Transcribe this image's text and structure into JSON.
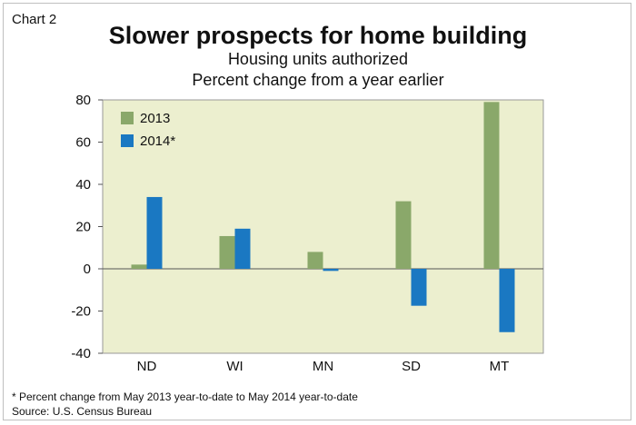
{
  "header": {
    "chart_tag": "Chart 2",
    "title": "Slower prospects for home building",
    "subtitle_line1": "Housing units authorized",
    "subtitle_line2": "Percent change from a year earlier"
  },
  "footer": {
    "note": "* Percent change from May 2013 year-to-date to May 2014 year-to-date",
    "source": "Source: U.S. Census Bureau"
  },
  "colors": {
    "plot_background": "#ecefcf",
    "series_2013": "#8aa86a",
    "series_2014": "#1a78c2"
  },
  "chart_data": {
    "type": "bar",
    "title": "Slower prospects for home building",
    "subtitle": "Housing units authorized / Percent change from a year earlier",
    "categories": [
      "ND",
      "WI",
      "MN",
      "SD",
      "MT"
    ],
    "series": [
      {
        "name": "2013",
        "values": [
          2,
          15.5,
          8,
          32,
          79
        ]
      },
      {
        "name": "2014*",
        "values": [
          34,
          19,
          -1,
          -17.5,
          -30
        ]
      }
    ],
    "ylim": [
      -40,
      80
    ],
    "yticks": [
      80,
      60,
      40,
      20,
      0,
      -20,
      -40
    ],
    "ytick_labels": [
      "80",
      "60",
      "40",
      "20",
      "0",
      "-20",
      "-40"
    ],
    "xlabel": "",
    "ylabel": "",
    "grid": false,
    "legend_position": "top-left"
  }
}
